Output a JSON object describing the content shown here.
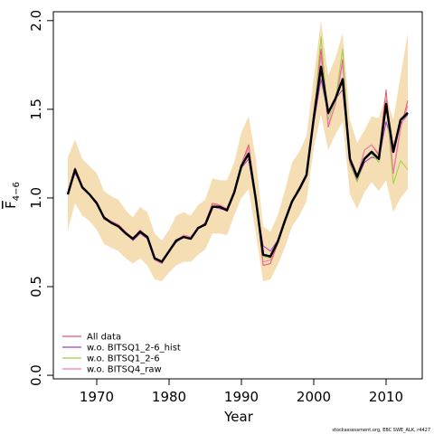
{
  "chart_data": {
    "type": "line",
    "title": "",
    "xlabel": "Year",
    "ylabel": "F",
    "ylabel_subscript": "4−6",
    "xlim": [
      1964,
      2015
    ],
    "ylim": [
      -0.02,
      2.05
    ],
    "x_ticks": [
      1970,
      1980,
      1990,
      2000,
      2010
    ],
    "x_tick_labels": [
      "1970",
      "1980",
      "1990",
      "2000",
      "2010"
    ],
    "y_ticks": [
      0.0,
      0.5,
      1.0,
      1.5,
      2.0
    ],
    "y_tick_labels": [
      "0.0",
      "0.5",
      "1.0",
      "1.5",
      "2.0"
    ],
    "grid": false,
    "legend_position": "bottom-left",
    "x": [
      1966,
      1967,
      1968,
      1969,
      1970,
      1971,
      1972,
      1973,
      1974,
      1975,
      1976,
      1977,
      1978,
      1979,
      1980,
      1981,
      1982,
      1983,
      1984,
      1985,
      1986,
      1987,
      1988,
      1989,
      1990,
      1991,
      1992,
      1993,
      1994,
      1995,
      1996,
      1997,
      1998,
      1999,
      2000,
      2001,
      2002,
      2003,
      2004,
      2005,
      2006,
      2007,
      2008,
      2009,
      2010,
      2011,
      2012,
      2013
    ],
    "band": {
      "color": "#f5deb3",
      "lower": [
        0.82,
        0.97,
        0.9,
        0.87,
        0.82,
        0.74,
        0.72,
        0.7,
        0.66,
        0.63,
        0.66,
        0.62,
        0.54,
        0.53,
        0.58,
        0.62,
        0.64,
        0.64,
        0.68,
        0.71,
        0.8,
        0.8,
        0.79,
        0.9,
        1.0,
        1.05,
        0.8,
        0.53,
        0.54,
        0.62,
        0.72,
        0.84,
        0.9,
        0.98,
        1.28,
        1.47,
        1.27,
        1.36,
        1.43,
        1.02,
        0.94,
        1.03,
        1.09,
        1.04,
        1.1,
        0.92,
        1.0,
        1.05
      ],
      "upper": [
        1.23,
        1.33,
        1.22,
        1.18,
        1.14,
        1.04,
        1.01,
        0.99,
        0.93,
        0.89,
        0.95,
        0.92,
        0.8,
        0.76,
        0.82,
        0.9,
        0.92,
        0.9,
        0.96,
        0.99,
        1.11,
        1.1,
        1.1,
        1.2,
        1.37,
        1.46,
        1.22,
        0.84,
        0.81,
        0.9,
        1.04,
        1.2,
        1.26,
        1.35,
        1.68,
        2.0,
        1.69,
        1.79,
        1.93,
        1.44,
        1.31,
        1.38,
        1.46,
        1.45,
        1.58,
        1.44,
        1.69,
        1.93
      ]
    },
    "series": [
      {
        "name": "All data",
        "color": "#e8536b",
        "width": 1,
        "values": [
          1.03,
          1.17,
          1.06,
          1.02,
          0.97,
          0.89,
          0.87,
          0.85,
          0.81,
          0.77,
          0.82,
          0.78,
          0.65,
          0.63,
          0.7,
          0.76,
          0.79,
          0.78,
          0.83,
          0.86,
          0.97,
          0.96,
          0.94,
          1.04,
          1.19,
          1.3,
          1.0,
          0.62,
          0.63,
          0.74,
          0.86,
          0.98,
          1.06,
          1.12,
          1.48,
          1.84,
          1.4,
          1.53,
          1.78,
          1.2,
          1.11,
          1.27,
          1.3,
          1.24,
          1.61,
          1.14,
          1.39,
          1.55
        ]
      },
      {
        "name": "w.o. BITSQ1_2-6_hist",
        "color": "#9b40c8",
        "width": 1,
        "values": [
          1.02,
          1.14,
          1.06,
          1.02,
          0.97,
          0.88,
          0.86,
          0.84,
          0.8,
          0.76,
          0.8,
          0.77,
          0.66,
          0.64,
          0.7,
          0.75,
          0.78,
          0.77,
          0.83,
          0.85,
          0.95,
          0.94,
          0.93,
          1.03,
          1.17,
          1.22,
          0.98,
          0.73,
          0.7,
          0.76,
          0.88,
          0.98,
          1.04,
          1.12,
          1.42,
          1.67,
          1.47,
          1.56,
          1.61,
          1.2,
          1.1,
          1.2,
          1.23,
          1.22,
          1.43,
          1.29,
          1.42,
          1.47
        ]
      },
      {
        "name": "w.o. BITSQ1_2-6",
        "color": "#9bd04a",
        "width": 1,
        "values": [
          1.02,
          1.15,
          1.06,
          1.02,
          0.97,
          0.89,
          0.86,
          0.84,
          0.8,
          0.77,
          0.81,
          0.78,
          0.66,
          0.64,
          0.7,
          0.76,
          0.78,
          0.77,
          0.83,
          0.85,
          0.95,
          0.95,
          0.93,
          1.03,
          1.18,
          1.24,
          0.99,
          0.67,
          0.66,
          0.75,
          0.86,
          0.98,
          1.04,
          1.13,
          1.45,
          1.91,
          1.44,
          1.55,
          1.84,
          1.19,
          1.09,
          1.22,
          1.25,
          1.2,
          1.55,
          1.08,
          1.21,
          1.16
        ]
      },
      {
        "name": "w.o. BITSQ4_raw",
        "color": "#f07ab4",
        "width": 1,
        "values": [
          1.03,
          1.16,
          1.06,
          1.02,
          0.98,
          0.89,
          0.87,
          0.85,
          0.81,
          0.77,
          0.82,
          0.78,
          0.65,
          0.63,
          0.7,
          0.76,
          0.79,
          0.78,
          0.83,
          0.86,
          0.96,
          0.96,
          0.94,
          1.04,
          1.19,
          1.28,
          1.0,
          0.64,
          0.65,
          0.75,
          0.86,
          0.98,
          1.06,
          1.12,
          1.47,
          1.8,
          1.41,
          1.53,
          1.76,
          1.19,
          1.12,
          1.27,
          1.3,
          1.25,
          1.55,
          1.15,
          1.4,
          1.52
        ]
      },
      {
        "name": "",
        "color": "#000000",
        "width": 2.5,
        "values": [
          1.02,
          1.16,
          1.06,
          1.02,
          0.97,
          0.89,
          0.86,
          0.84,
          0.8,
          0.77,
          0.81,
          0.78,
          0.66,
          0.64,
          0.7,
          0.76,
          0.78,
          0.77,
          0.83,
          0.85,
          0.95,
          0.95,
          0.93,
          1.03,
          1.18,
          1.25,
          0.99,
          0.68,
          0.67,
          0.75,
          0.87,
          0.98,
          1.05,
          1.13,
          1.45,
          1.74,
          1.48,
          1.56,
          1.67,
          1.22,
          1.12,
          1.22,
          1.26,
          1.22,
          1.53,
          1.26,
          1.44,
          1.48
        ]
      }
    ]
  },
  "footer": {
    "credit": "stockassessment.org, EBC SWE_ALK, r4427"
  }
}
